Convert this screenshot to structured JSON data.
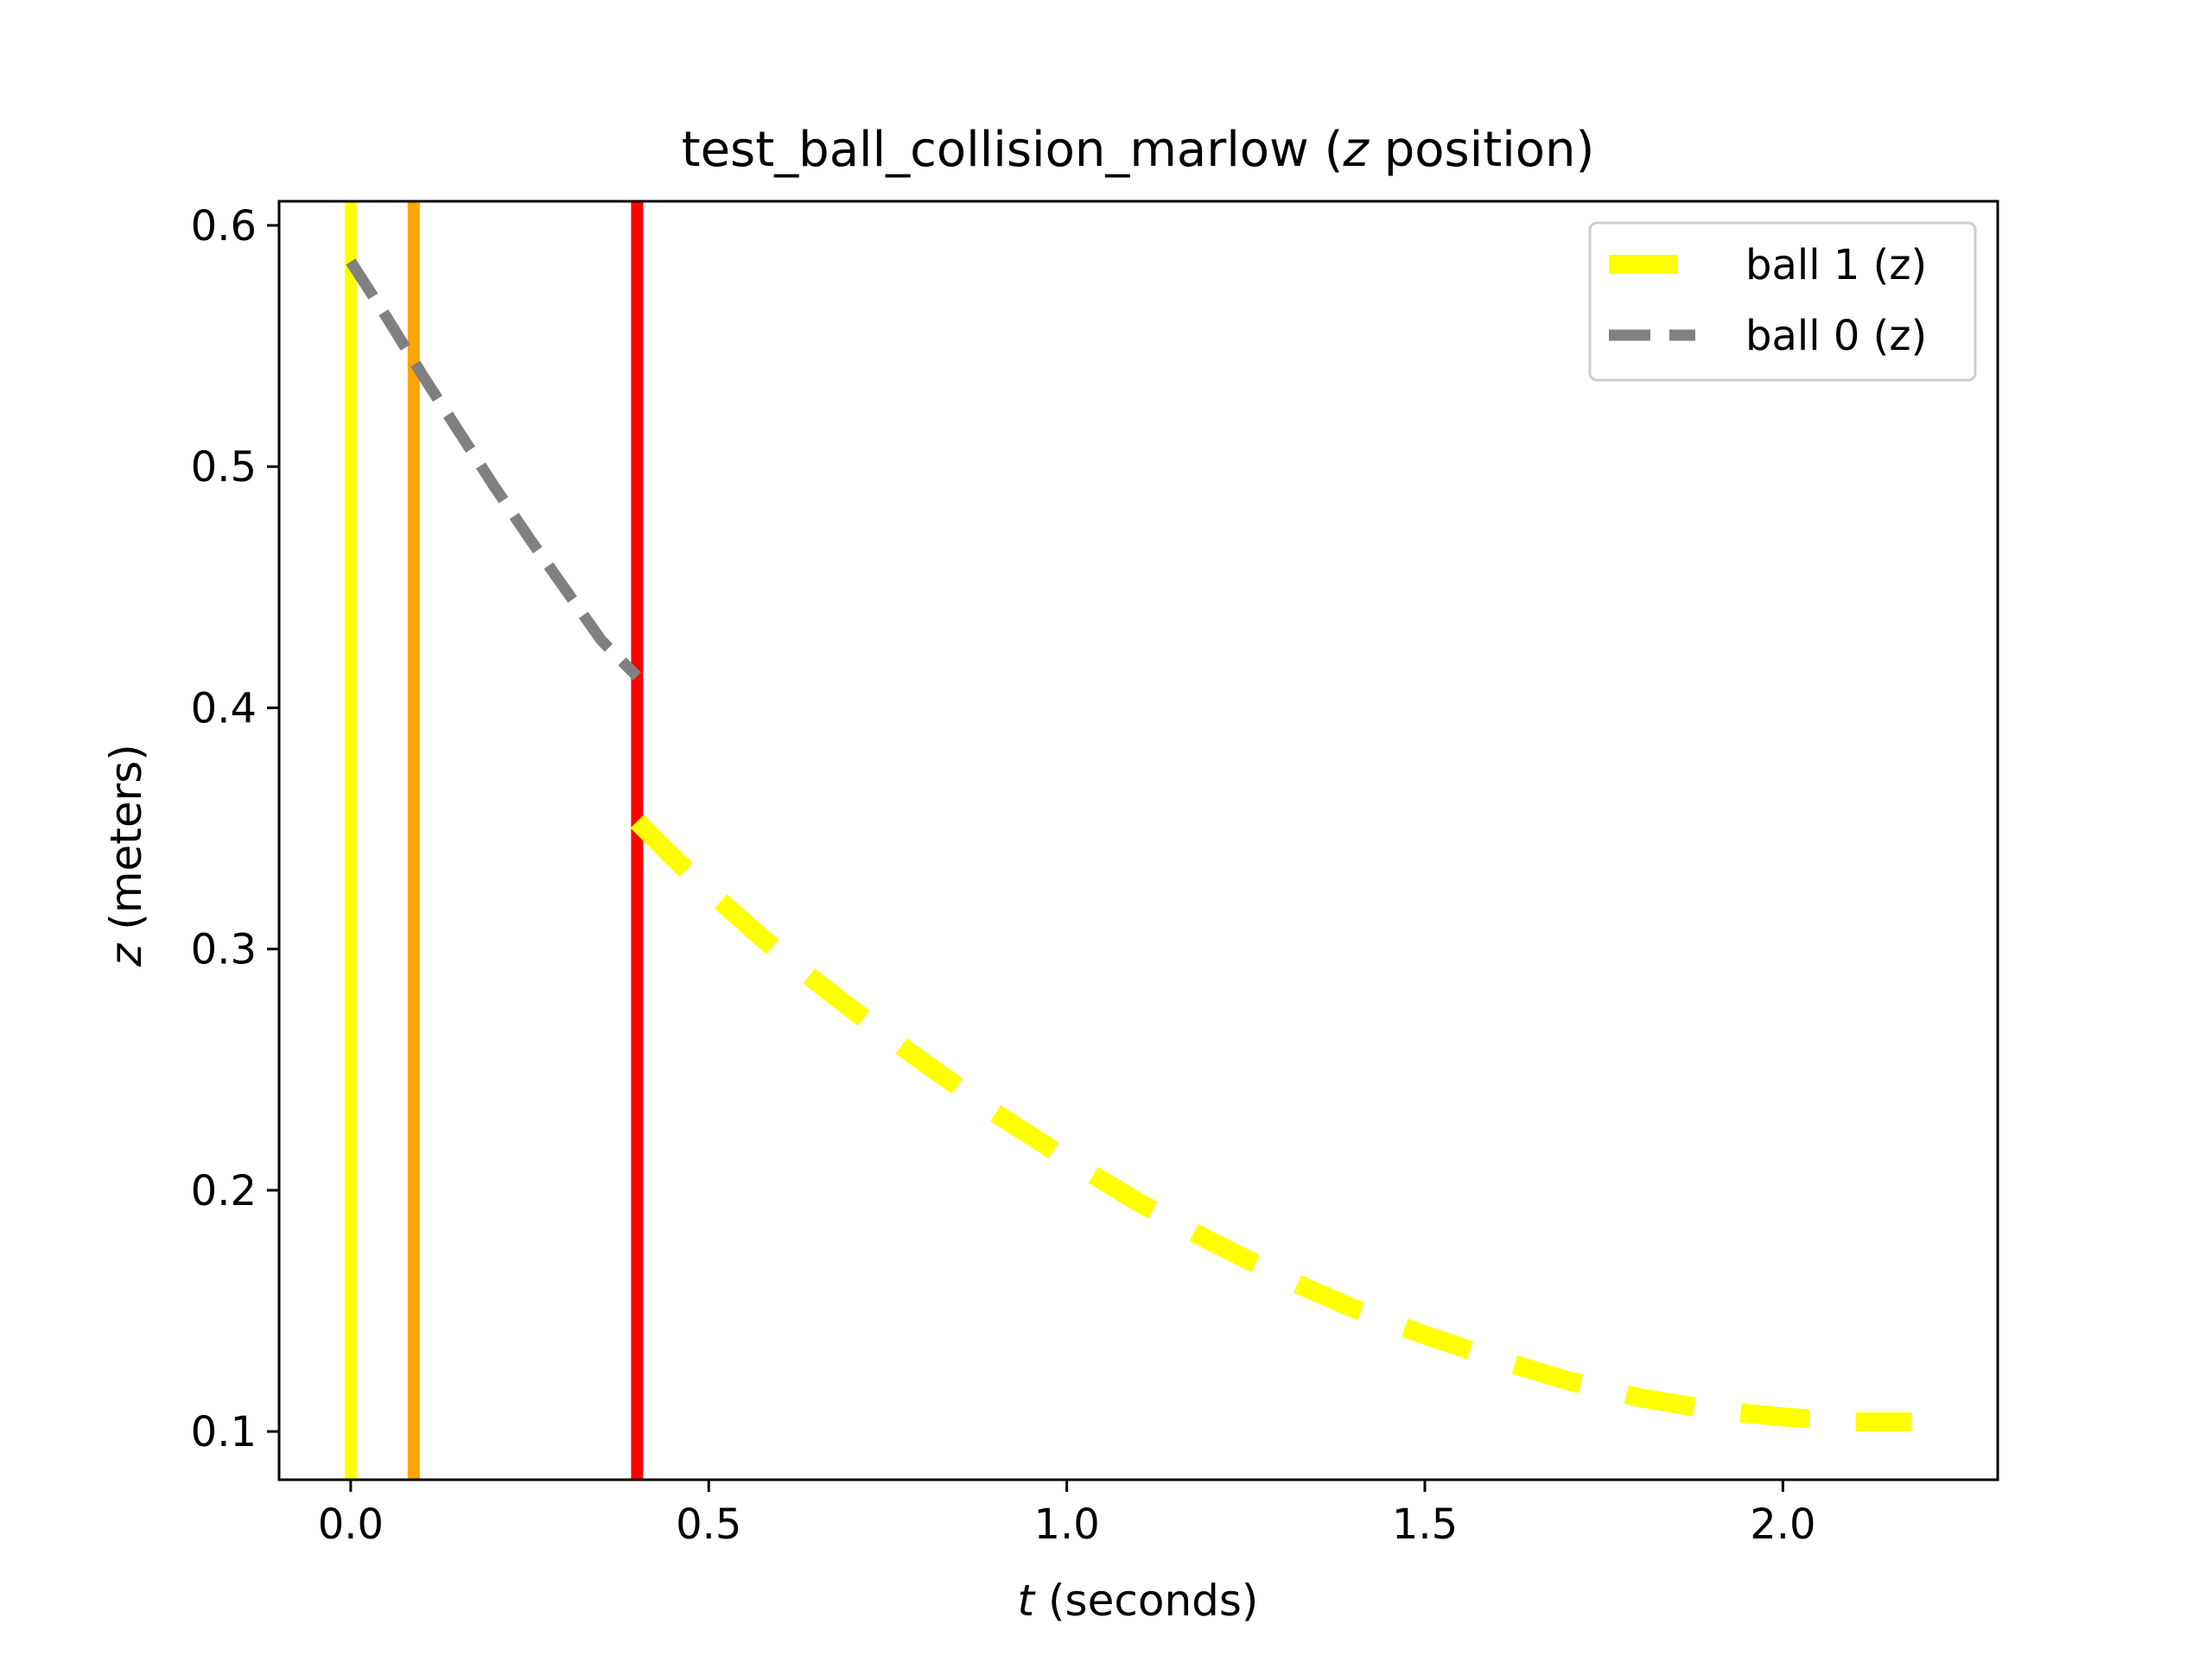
{
  "chart_data": {
    "type": "line",
    "title": {
      "prefix": "test_ball_collision_marlow (",
      "variable": "z",
      "suffix": " position)"
    },
    "xlabel": {
      "variable": "t",
      "suffix": " (seconds)"
    },
    "ylabel": {
      "variable": "z",
      "suffix": " (meters)"
    },
    "xlim": [
      -0.1,
      2.3
    ],
    "ylim": [
      0.08,
      0.61
    ],
    "xticks": [
      {
        "value": 0.0,
        "label": "0.0"
      },
      {
        "value": 0.5,
        "label": "0.5"
      },
      {
        "value": 1.0,
        "label": "1.0"
      },
      {
        "value": 1.5,
        "label": "1.5"
      },
      {
        "value": 2.0,
        "label": "2.0"
      }
    ],
    "yticks": [
      {
        "value": 0.1,
        "label": "0.1"
      },
      {
        "value": 0.2,
        "label": "0.2"
      },
      {
        "value": 0.3,
        "label": "0.3"
      },
      {
        "value": 0.4,
        "label": "0.4"
      },
      {
        "value": 0.5,
        "label": "0.5"
      },
      {
        "value": 0.6,
        "label": "0.6"
      }
    ],
    "grid": false,
    "legend_position": "top-right",
    "vertical_lines": [
      {
        "x": 0.0,
        "color": "#ffff00"
      },
      {
        "x": 0.088,
        "color": "#ffa500"
      },
      {
        "x": 0.4,
        "color": "#ff0000"
      }
    ],
    "series": [
      {
        "name": "ball 1 (z)",
        "color": "#ffff00",
        "style": "dashed",
        "width": "thick",
        "x": [
          0.4,
          0.45,
          0.5,
          0.6,
          0.7,
          0.8,
          0.9,
          1.0,
          1.1,
          1.2,
          1.3,
          1.4,
          1.5,
          1.6,
          1.7,
          1.8,
          1.9,
          2.0,
          2.1,
          2.18
        ],
        "y": [
          0.353,
          0.338,
          0.324,
          0.298,
          0.275,
          0.253,
          0.232,
          0.213,
          0.195,
          0.179,
          0.164,
          0.151,
          0.14,
          0.13,
          0.121,
          0.114,
          0.109,
          0.106,
          0.104,
          0.104
        ]
      },
      {
        "name": "ball 0 (z)",
        "color": "#808080",
        "style": "dashed",
        "width": "medium",
        "x": [
          0.0,
          0.05,
          0.1,
          0.15,
          0.2,
          0.25,
          0.3,
          0.35,
          0.4
        ],
        "y": [
          0.585,
          0.562,
          0.538,
          0.515,
          0.492,
          0.47,
          0.449,
          0.428,
          0.413
        ]
      }
    ]
  }
}
